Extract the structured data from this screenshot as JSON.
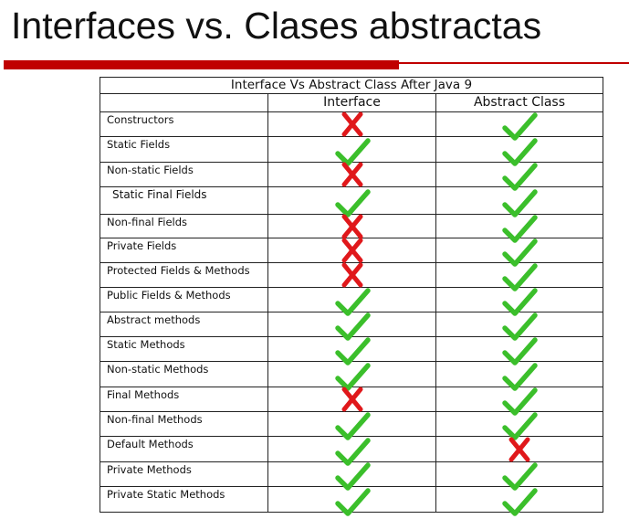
{
  "slide": {
    "title": "Interfaces vs. Clases abstractas"
  },
  "table": {
    "caption": "Interface Vs Abstract Class After Java 9",
    "columns": [
      "",
      "Interface",
      "Abstract Class"
    ],
    "rows": [
      {
        "feature": "Constructors",
        "interface": "no",
        "abstract_class": "yes"
      },
      {
        "feature": "Static Fields",
        "interface": "yes",
        "abstract_class": "yes"
      },
      {
        "feature": "Non-static  Fields",
        "interface": "no",
        "abstract_class": "yes"
      },
      {
        "feature": "Static Final Fields",
        "interface": "yes",
        "abstract_class": "yes"
      },
      {
        "feature": "Non-final Fields",
        "interface": "no",
        "abstract_class": "yes"
      },
      {
        "feature": "Private Fields",
        "interface": "no",
        "abstract_class": "yes"
      },
      {
        "feature": "Protected Fields & Methods",
        "interface": "no",
        "abstract_class": "yes"
      },
      {
        "feature": "Public Fields & Methods",
        "interface": "yes",
        "abstract_class": "yes"
      },
      {
        "feature": "Abstract methods",
        "interface": "yes",
        "abstract_class": "yes"
      },
      {
        "feature": "Static Methods",
        "interface": "yes",
        "abstract_class": "yes"
      },
      {
        "feature": "Non-static Methods",
        "interface": "yes",
        "abstract_class": "yes"
      },
      {
        "feature": "Final Methods",
        "interface": "no",
        "abstract_class": "yes"
      },
      {
        "feature": "Non-final Methods",
        "interface": "yes",
        "abstract_class": "yes"
      },
      {
        "feature": "Default Methods",
        "interface": "yes",
        "abstract_class": "no"
      },
      {
        "feature": "Private Methods",
        "interface": "yes",
        "abstract_class": "yes"
      },
      {
        "feature": "Private Static Methods",
        "interface": "yes",
        "abstract_class": "yes"
      }
    ]
  },
  "colors": {
    "check": "#3bbf2b",
    "cross": "#e0181b",
    "title_rule": "#c00000"
  },
  "icons": {
    "yes": "check-icon",
    "no": "cross-icon"
  }
}
